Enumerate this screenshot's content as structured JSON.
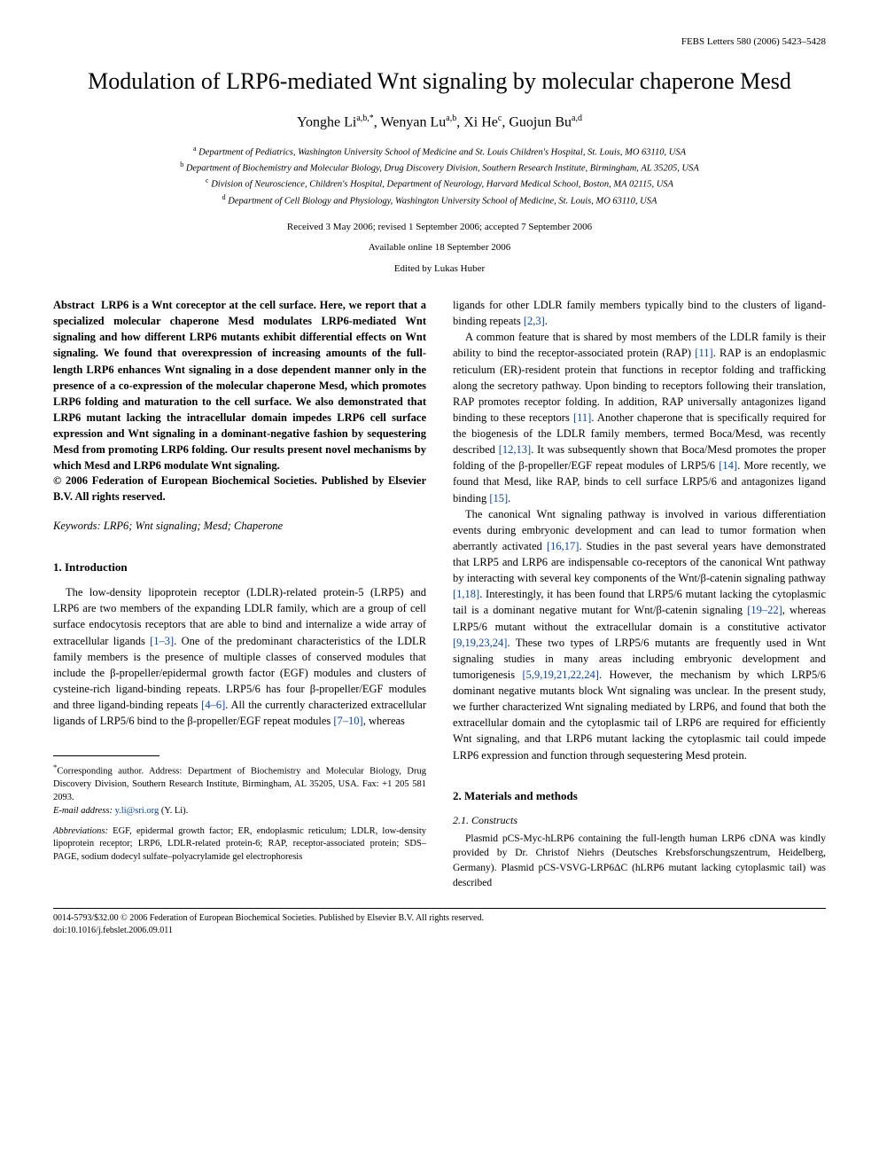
{
  "header": {
    "journal_line": "FEBS Letters 580 (2006) 5423–5428"
  },
  "title": "Modulation of LRP6-mediated Wnt signaling by molecular chaperone Mesd",
  "authors_html": "Yonghe Li<sup>a,b,*</sup>, Wenyan Lu<sup>a,b</sup>, Xi He<sup>c</sup>, Guojun Bu<sup>a,d</sup>",
  "affiliations": [
    {
      "sup": "a",
      "text": "Department of Pediatrics, Washington University School of Medicine and St. Louis Children's Hospital, St. Louis, MO 63110, USA"
    },
    {
      "sup": "b",
      "text": "Department of Biochemistry and Molecular Biology, Drug Discovery Division, Southern Research Institute, Birmingham, AL 35205, USA"
    },
    {
      "sup": "c",
      "text": "Division of Neuroscience, Children's Hospital, Department of Neurology, Harvard Medical School, Boston, MA 02115, USA"
    },
    {
      "sup": "d",
      "text": "Department of Cell Biology and Physiology, Washington University School of Medicine, St. Louis, MO 63110, USA"
    }
  ],
  "dates": {
    "received": "Received 3 May 2006; revised 1 September 2006; accepted 7 September 2006",
    "online": "Available online 18 September 2006"
  },
  "edited_by": "Edited by Lukas Huber",
  "abstract": {
    "label": "Abstract",
    "text": "LRP6 is a Wnt coreceptor at the cell surface. Here, we report that a specialized molecular chaperone Mesd modulates LRP6-mediated Wnt signaling and how different LRP6 mutants exhibit differential effects on Wnt signaling. We found that overexpression of increasing amounts of the full-length LRP6 enhances Wnt signaling in a dose dependent manner only in the presence of a co-expression of the molecular chaperone Mesd, which promotes LRP6 folding and maturation to the cell surface. We also demonstrated that LRP6 mutant lacking the intracellular domain impedes LRP6 cell surface expression and Wnt signaling in a dominant-negative fashion by sequestering Mesd from promoting LRP6 folding. Our results present novel mechanisms by which Mesd and LRP6 modulate Wnt signaling.",
    "copyright": "© 2006 Federation of European Biochemical Societies. Published by Elsevier B.V. All rights reserved."
  },
  "keywords": "Keywords: LRP6; Wnt signaling; Mesd; Chaperone",
  "sections": {
    "intro_heading": "1. Introduction",
    "intro_p1_pre": "The low-density lipoprotein receptor (LDLR)-related protein-5 (LRP5) and LRP6 are two members of the expanding LDLR family, which are a group of cell surface endocytosis receptors that are able to bind and internalize a wide array of extracellular ligands ",
    "intro_p1_cite1": "[1–3]",
    "intro_p1_mid": ". One of the predominant characteristics of the LDLR family members is the presence of multiple classes of conserved modules that include the β-propeller/epidermal growth factor (EGF) modules and clusters of cysteine-rich ligand-binding repeats. LRP5/6 has four β-propeller/EGF modules and three ligand-binding repeats ",
    "intro_p1_cite2": "[4–6]",
    "intro_p1_mid2": ". All the currently characterized extracellular ligands of LRP5/6 bind to the β-propeller/EGF repeat modules ",
    "intro_p1_cite3": "[7–10]",
    "intro_p1_post": ", whereas",
    "col2_p1_pre": "ligands for other LDLR family members typically bind to the clusters of ligand-binding repeats ",
    "col2_p1_cite": "[2,3]",
    "col2_p1_post": ".",
    "col2_p2_pre": "A common feature that is shared by most members of the LDLR family is their ability to bind the receptor-associated protein (RAP) ",
    "col2_p2_cite1": "[11]",
    "col2_p2_mid1": ". RAP is an endoplasmic reticulum (ER)-resident protein that functions in receptor folding and trafficking along the secretory pathway. Upon binding to receptors following their translation, RAP promotes receptor folding. In addition, RAP universally antagonizes ligand binding to these receptors ",
    "col2_p2_cite2": "[11]",
    "col2_p2_mid2": ". Another chaperone that is specifically required for the biogenesis of the LDLR family members, termed Boca/Mesd, was recently described ",
    "col2_p2_cite3": "[12,13]",
    "col2_p2_mid3": ". It was subsequently shown that Boca/Mesd promotes the proper folding of the β-propeller/EGF repeat modules of LRP5/6 ",
    "col2_p2_cite4": "[14]",
    "col2_p2_mid4": ". More recently, we found that Mesd, like RAP, binds to cell surface LRP5/6 and antagonizes ligand binding ",
    "col2_p2_cite5": "[15]",
    "col2_p2_post": ".",
    "col2_p3_pre": "The canonical Wnt signaling pathway is involved in various differentiation events during embryonic development and can lead to tumor formation when aberrantly activated ",
    "col2_p3_cite1": "[16,17]",
    "col2_p3_mid1": ". Studies in the past several years have demonstrated that LRP5 and LRP6 are indispensable co-receptors of the canonical Wnt pathway by interacting with several key components of the Wnt/β-catenin signaling pathway ",
    "col2_p3_cite2": "[1,18]",
    "col2_p3_mid2": ". Interestingly, it has been found that LRP5/6 mutant lacking the cytoplasmic tail is a dominant negative mutant for Wnt/β-catenin signaling ",
    "col2_p3_cite3": "[19–22]",
    "col2_p3_mid3": ", whereas LRP5/6 mutant without the extracellular domain is a constitutive activator ",
    "col2_p3_cite4": "[9,19,23,24]",
    "col2_p3_mid4": ". These two types of LRP5/6 mutants are frequently used in Wnt signaling studies in many areas including embryonic development and tumorigenesis ",
    "col2_p3_cite5": "[5,9,19,21,22,24]",
    "col2_p3_post": ". However, the mechanism by which LRP5/6 dominant negative mutants block Wnt signaling was unclear. In the present study, we further characterized Wnt signaling mediated by LRP6, and found that both the extracellular domain and the cytoplasmic tail of LRP6 are required for efficiently Wnt signaling, and that LRP6 mutant lacking the cytoplasmic tail could impede LRP6 expression and function through sequestering Mesd protein.",
    "methods_heading": "2. Materials and methods",
    "methods_sub": "2.1. Constructs",
    "methods_text": "Plasmid pCS-Myc-hLRP6 containing the full-length human LRP6 cDNA was kindly provided by Dr. Christof Niehrs (Deutsches Krebsforschungszentrum, Heidelberg, Germany). Plasmid pCS-VSVG-LRP6ΔC (hLRP6 mutant lacking cytoplasmic tail) was described"
  },
  "footnotes": {
    "corresponding_label": "*",
    "corresponding": "Corresponding author. Address: Department of Biochemistry and Molecular Biology, Drug Discovery Division, Southern Research Institute, Birmingham, AL 35205, USA. Fax: +1 205 581 2093.",
    "email_label": "E-mail address:",
    "email": "y.li@sri.org",
    "email_name": "(Y. Li).",
    "abbrev_label": "Abbreviations:",
    "abbrev": "EGF, epidermal growth factor; ER, endoplasmic reticulum; LDLR, low-density lipoprotein receptor; LRP6, LDLR-related protein-6; RAP, receptor-associated protein; SDS–PAGE, sodium dodecyl sulfate–polyacrylamide gel electrophoresis"
  },
  "footer": {
    "line": "0014-5793/$32.00 © 2006 Federation of European Biochemical Societies. Published by Elsevier B.V. All rights reserved.",
    "doi": "doi:10.1016/j.febslet.2006.09.011"
  }
}
